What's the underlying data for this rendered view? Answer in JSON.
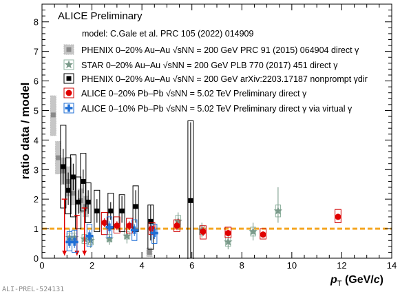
{
  "chart_data": {
    "type": "scatter",
    "title": "ALICE Preliminary",
    "subtitle": "model: C.Gale et al. PRC 105 (2022) 014909",
    "xlabel": "p_T (GeV/c)",
    "ylabel": "ratio data / model",
    "xlim": [
      0,
      14
    ],
    "ylim": [
      0,
      8.6
    ],
    "x_ticks": [
      "0",
      "2",
      "4",
      "6",
      "8",
      "10",
      "12",
      "14"
    ],
    "y_ticks": [
      "0",
      "1",
      "2",
      "3",
      "4",
      "5",
      "6",
      "7",
      "8"
    ],
    "reference_line": 1,
    "footer": "ALI-PREL-524131",
    "legend_position": "top-right",
    "series": [
      {
        "name": "PHENIX 0–20% Au–Au √sNN = 200 GeV PRC 91 (2015) 064904 direct γ",
        "marker": "square",
        "color": "#8a8a8a",
        "points": [
          [
            0.45,
            4.85
          ],
          [
            0.65,
            3.4
          ],
          [
            0.85,
            2.95
          ],
          [
            1.05,
            2.6
          ],
          [
            1.25,
            2.2
          ],
          [
            1.55,
            1.95
          ],
          [
            1.75,
            1.75
          ],
          [
            4.3,
            0.2
          ]
        ],
        "sys": [
          [
            0.45,
            4.15,
            5.5
          ],
          [
            0.65,
            2.85,
            3.95
          ],
          [
            0.85,
            2.5,
            3.4
          ],
          [
            1.05,
            2.1,
            3.1
          ],
          [
            1.25,
            1.8,
            2.65
          ],
          [
            1.55,
            1.55,
            2.35
          ],
          [
            1.75,
            1.4,
            2.1
          ],
          [
            4.3,
            0.05,
            0.35
          ]
        ]
      },
      {
        "name": "STAR 0–20% Au–Au √sNN = 200 GeV PLB 770 (2017) 451 direct γ",
        "marker": "star",
        "color": "#7a9a8a",
        "points": [
          [
            1.1,
            0.7
          ],
          [
            1.3,
            0.7
          ],
          [
            1.7,
            0.65
          ],
          [
            1.95,
            0.6
          ],
          [
            2.7,
            0.65
          ],
          [
            3.4,
            0.75
          ],
          [
            5.45,
            1.25
          ],
          [
            6.4,
            0.95
          ],
          [
            7.45,
            0.55
          ],
          [
            8.45,
            0.9
          ],
          [
            9.45,
            1.6
          ]
        ],
        "sys": [
          [
            1.1,
            0.55,
            0.85
          ],
          [
            1.3,
            0.55,
            0.85
          ],
          [
            1.7,
            0.5,
            0.8
          ],
          [
            1.95,
            0.45,
            0.75
          ],
          [
            2.7,
            0.55,
            0.8
          ],
          [
            3.4,
            0.65,
            0.9
          ],
          [
            5.45,
            1.05,
            1.45
          ],
          [
            6.4,
            0.8,
            1.1
          ],
          [
            7.45,
            0.4,
            0.7
          ],
          [
            8.45,
            0.75,
            1.05
          ],
          [
            9.45,
            1.4,
            1.8
          ]
        ],
        "stat": [
          [
            1.1,
            0.4,
            1.0
          ],
          [
            1.3,
            0.45,
            0.95
          ],
          [
            1.7,
            0.4,
            0.9
          ],
          [
            1.95,
            0.35,
            0.85
          ],
          [
            2.7,
            0.45,
            0.85
          ],
          [
            3.4,
            0.5,
            1.0
          ],
          [
            5.45,
            0.95,
            1.55
          ],
          [
            6.4,
            0.7,
            1.2
          ],
          [
            7.45,
            0.3,
            0.8
          ],
          [
            8.45,
            0.6,
            1.2
          ],
          [
            9.45,
            1.2,
            2.4
          ]
        ]
      },
      {
        "name": "PHENIX 0–20% Au–Au √sNN = 200 GeV arXiv:2203.17187 nonprompt γdir",
        "marker": "square",
        "color": "#000000",
        "points": [
          [
            0.85,
            3.1
          ],
          [
            1.05,
            2.3
          ],
          [
            1.25,
            2.75
          ],
          [
            1.45,
            1.9
          ],
          [
            1.65,
            2.6
          ],
          [
            1.85,
            1.9
          ],
          [
            2.2,
            1.6
          ],
          [
            2.75,
            1.6
          ],
          [
            3.2,
            1.6
          ],
          [
            3.75,
            1.75
          ],
          [
            4.35,
            1.25
          ],
          [
            5.95,
            1.95
          ]
        ],
        "sys": [
          [
            0.85,
            1.7,
            4.5
          ],
          [
            1.05,
            1.5,
            3.4
          ],
          [
            1.25,
            1.4,
            3.5
          ],
          [
            1.45,
            1.0,
            2.75
          ],
          [
            1.65,
            1.6,
            3.55
          ],
          [
            1.85,
            1.2,
            2.55
          ],
          [
            2.2,
            0.9,
            2.3
          ],
          [
            2.75,
            1.0,
            2.2
          ],
          [
            3.2,
            0.9,
            2.15
          ],
          [
            3.75,
            0.9,
            2.45
          ],
          [
            4.35,
            0.3,
            1.8
          ],
          [
            5.95,
            -0.1,
            4.65
          ]
        ],
        "stat": [
          [
            0.85,
            2.5,
            3.7
          ],
          [
            1.05,
            1.8,
            2.9
          ],
          [
            1.25,
            2.3,
            3.2
          ],
          [
            1.45,
            1.5,
            2.3
          ],
          [
            1.65,
            2.2,
            3.0
          ],
          [
            1.85,
            1.5,
            2.3
          ],
          [
            2.2,
            1.2,
            2.0
          ],
          [
            2.75,
            1.3,
            1.9
          ],
          [
            3.2,
            1.2,
            2.1
          ],
          [
            3.75,
            1.2,
            2.3
          ],
          [
            4.35,
            0.6,
            1.8
          ],
          [
            5.95,
            0.0,
            4.6
          ]
        ]
      },
      {
        "name": "ALICE 0–20% Pb–Pb √sNN = 5.02 TeV Preliminary direct γ",
        "marker": "circle",
        "color": "#e00000",
        "points": [
          [
            2.5,
            1.2
          ],
          [
            3.0,
            1.1
          ],
          [
            3.5,
            1.1
          ],
          [
            4.4,
            1.0
          ],
          [
            5.4,
            1.1
          ],
          [
            6.45,
            0.9
          ],
          [
            7.45,
            0.85
          ],
          [
            8.85,
            0.8
          ],
          [
            11.85,
            1.4
          ]
        ],
        "sys": [
          [
            2.5,
            0.8,
            1.55
          ],
          [
            3.0,
            0.85,
            1.4
          ],
          [
            3.5,
            0.85,
            1.35
          ],
          [
            4.4,
            0.8,
            1.2
          ],
          [
            5.4,
            0.9,
            1.3
          ],
          [
            6.45,
            0.65,
            1.1
          ],
          [
            7.45,
            0.7,
            1.05
          ],
          [
            8.85,
            0.65,
            1.0
          ],
          [
            11.85,
            1.2,
            1.65
          ]
        ],
        "stat": [
          [
            2.5,
            1.05,
            1.35
          ],
          [
            3.0,
            0.95,
            1.25
          ],
          [
            3.5,
            0.95,
            1.25
          ],
          [
            4.4,
            0.9,
            1.1
          ],
          [
            5.4,
            0.95,
            1.25
          ],
          [
            6.45,
            0.75,
            1.05
          ],
          [
            7.45,
            0.75,
            0.95
          ],
          [
            8.85,
            0.7,
            0.9
          ],
          [
            11.85,
            1.3,
            1.5
          ]
        ],
        "upper_limits": [
          [
            0.9,
            2.0
          ],
          [
            1.4,
            1.45
          ],
          [
            1.7,
            1.7
          ]
        ]
      },
      {
        "name": "ALICE 0–10% Pb–Pb √sNN = 5.02 TeV Preliminary direct γ via virtual γ",
        "marker": "cross",
        "color": "#1f6fd6",
        "points": [
          [
            1.1,
            0.55
          ],
          [
            1.3,
            0.55
          ],
          [
            1.9,
            0.75
          ],
          [
            2.7,
            1.05
          ],
          [
            3.7,
            0.95
          ],
          [
            4.5,
            0.85
          ]
        ],
        "sys": [
          [
            1.1,
            0.25,
            0.9
          ],
          [
            1.3,
            0.2,
            0.95
          ],
          [
            1.9,
            0.4,
            1.15
          ],
          [
            2.7,
            0.7,
            1.4
          ],
          [
            3.7,
            0.6,
            1.3
          ],
          [
            4.5,
            0.5,
            1.15
          ]
        ],
        "stat": [
          [
            1.1,
            0.35,
            0.75
          ],
          [
            1.3,
            0.35,
            0.75
          ],
          [
            1.9,
            0.55,
            0.95
          ],
          [
            2.7,
            0.85,
            1.25
          ],
          [
            3.7,
            0.75,
            1.15
          ],
          [
            4.5,
            0.65,
            1.05
          ]
        ]
      }
    ]
  }
}
